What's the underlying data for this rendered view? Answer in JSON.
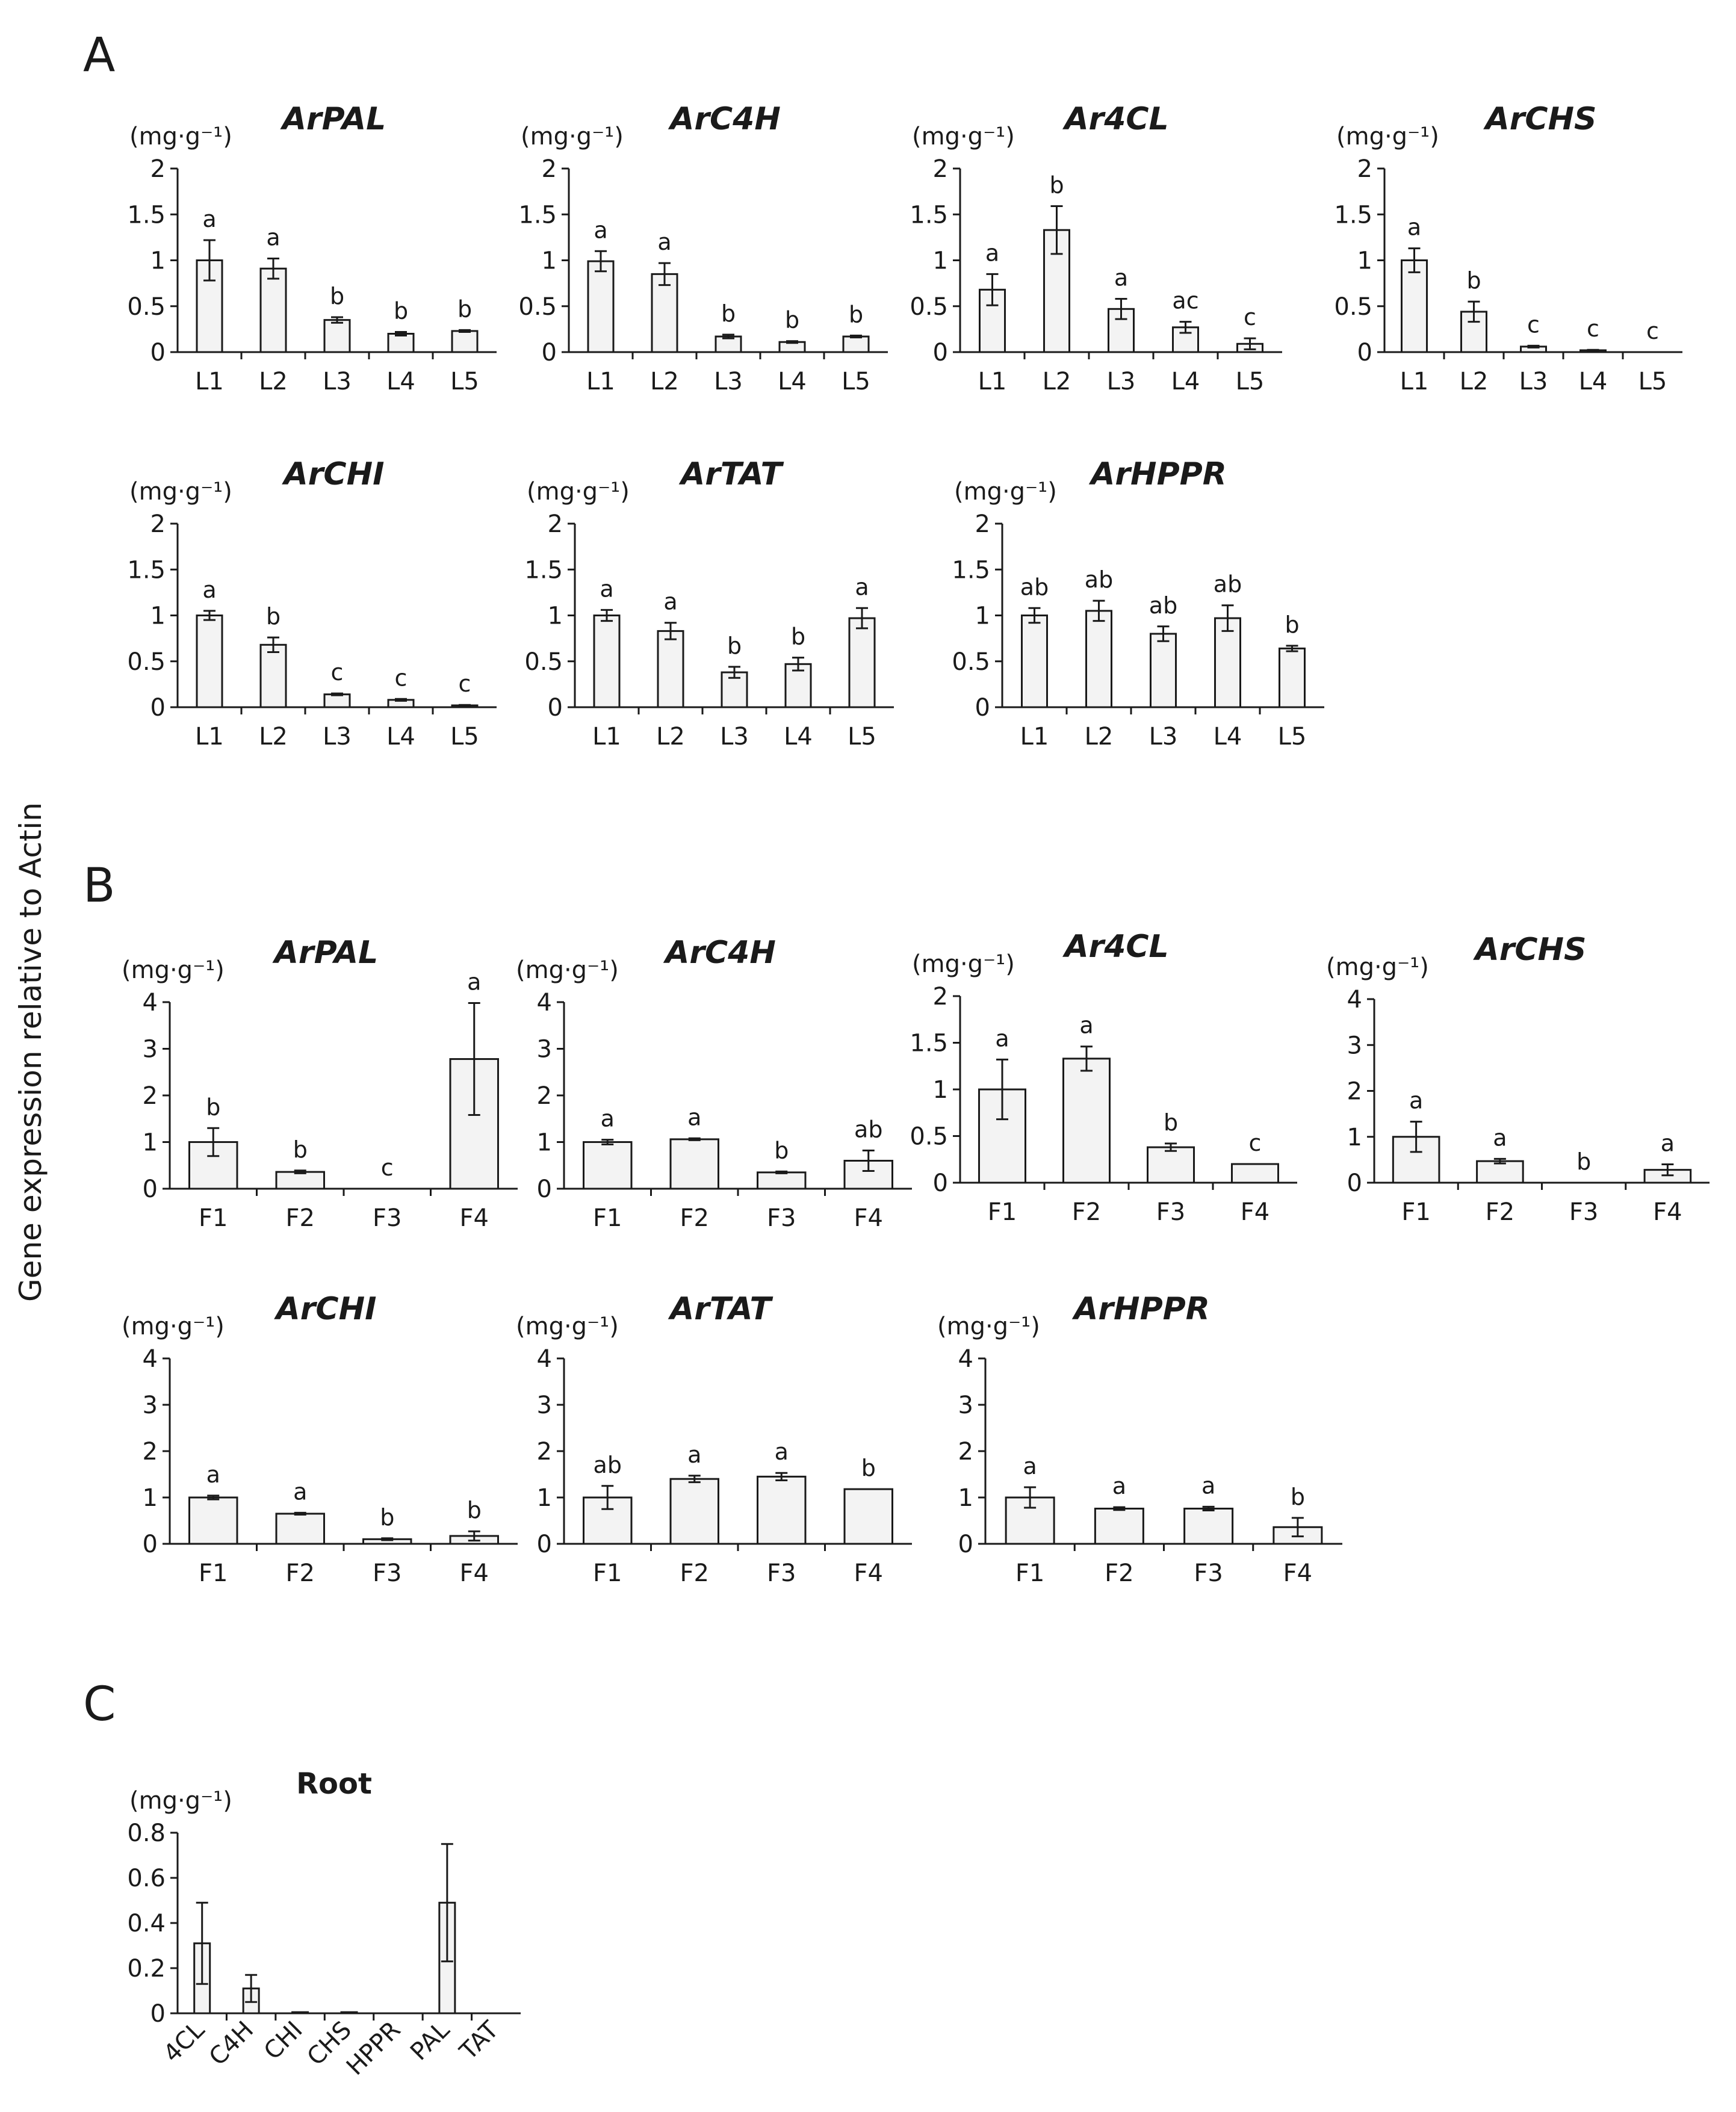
{
  "figure": {
    "y_axis_label": "Gene expression relative to Actin",
    "unit_label": "(mg·g⁻¹)",
    "panels": [
      {
        "letter": "A"
      },
      {
        "letter": "B"
      },
      {
        "letter": "C"
      }
    ]
  },
  "chart_data": [
    {
      "panel": "A",
      "type": "bar",
      "title": "ArPAL",
      "ylabel": "(mg·g⁻¹)",
      "ylim": [
        0,
        2
      ],
      "yticks": [
        "0",
        "0.5",
        "1",
        "1.5",
        "2"
      ],
      "categories": [
        "L1",
        "L2",
        "L3",
        "L4",
        "L5"
      ],
      "values": [
        1.0,
        0.91,
        0.35,
        0.2,
        0.23
      ],
      "errors": [
        0.22,
        0.11,
        0.03,
        0.02,
        0.01
      ],
      "letters": [
        "a",
        "a",
        "b",
        "b",
        "b"
      ]
    },
    {
      "panel": "A",
      "type": "bar",
      "title": "ArC4H",
      "ylabel": "(mg·g⁻¹)",
      "ylim": [
        0,
        2
      ],
      "yticks": [
        "0",
        "0.5",
        "1",
        "1.5",
        "2"
      ],
      "categories": [
        "L1",
        "L2",
        "L3",
        "L4",
        "L5"
      ],
      "values": [
        0.99,
        0.85,
        0.17,
        0.11,
        0.17
      ],
      "errors": [
        0.11,
        0.12,
        0.02,
        0.01,
        0.01
      ],
      "letters": [
        "a",
        "a",
        "b",
        "b",
        "b"
      ]
    },
    {
      "panel": "A",
      "type": "bar",
      "title": "Ar4CL",
      "ylabel": "(mg·g⁻¹)",
      "ylim": [
        0,
        2
      ],
      "yticks": [
        "0",
        "0.5",
        "1",
        "1.5",
        "2"
      ],
      "categories": [
        "L1",
        "L2",
        "L3",
        "L4",
        "L5"
      ],
      "values": [
        0.68,
        1.33,
        0.47,
        0.27,
        0.09
      ],
      "errors": [
        0.17,
        0.26,
        0.11,
        0.06,
        0.06
      ],
      "letters": [
        "a",
        "b",
        "a",
        "ac",
        "c"
      ]
    },
    {
      "panel": "A",
      "type": "bar",
      "title": "ArCHS",
      "ylabel": "(mg·g⁻¹)",
      "ylim": [
        0,
        2
      ],
      "yticks": [
        "0",
        "0.5",
        "1",
        "1.5",
        "2"
      ],
      "categories": [
        "L1",
        "L2",
        "L3",
        "L4",
        "L5"
      ],
      "values": [
        1.0,
        0.44,
        0.06,
        0.02,
        0.0
      ],
      "errors": [
        0.13,
        0.11,
        0.01,
        0.005,
        0.0
      ],
      "letters": [
        "a",
        "b",
        "c",
        "c",
        "c"
      ]
    },
    {
      "panel": "A",
      "type": "bar",
      "title": "ArCHI",
      "ylabel": "(mg·g⁻¹)",
      "ylim": [
        0,
        2
      ],
      "yticks": [
        "0",
        "0.5",
        "1",
        "1.5",
        "2"
      ],
      "categories": [
        "L1",
        "L2",
        "L3",
        "L4",
        "L5"
      ],
      "values": [
        1.0,
        0.68,
        0.14,
        0.08,
        0.02
      ],
      "errors": [
        0.05,
        0.08,
        0.01,
        0.01,
        0.005
      ],
      "letters": [
        "a",
        "b",
        "c",
        "c",
        "c"
      ]
    },
    {
      "panel": "A",
      "type": "bar",
      "title": "ArTAT",
      "ylabel": "(mg·g⁻¹)",
      "ylim": [
        0,
        2
      ],
      "yticks": [
        "0",
        "0.5",
        "1",
        "1.5",
        "2"
      ],
      "categories": [
        "L1",
        "L2",
        "L3",
        "L4",
        "L5"
      ],
      "values": [
        1.0,
        0.83,
        0.38,
        0.47,
        0.97
      ],
      "errors": [
        0.06,
        0.09,
        0.06,
        0.07,
        0.11
      ],
      "letters": [
        "a",
        "a",
        "b",
        "b",
        "a"
      ]
    },
    {
      "panel": "A",
      "type": "bar",
      "title": "ArHPPR",
      "ylabel": "(mg·g⁻¹)",
      "ylim": [
        0,
        2
      ],
      "yticks": [
        "0",
        "0.5",
        "1",
        "1.5",
        "2"
      ],
      "categories": [
        "L1",
        "L2",
        "L3",
        "L4",
        "L5"
      ],
      "values": [
        1.0,
        1.05,
        0.8,
        0.97,
        0.64
      ],
      "errors": [
        0.08,
        0.11,
        0.08,
        0.14,
        0.03
      ],
      "letters": [
        "ab",
        "ab",
        "ab",
        "ab",
        "b"
      ]
    },
    {
      "panel": "B",
      "type": "bar",
      "title": "ArPAL",
      "ylabel": "(mg·g⁻¹)",
      "ylim": [
        0,
        4
      ],
      "yticks": [
        "0",
        "1",
        "2",
        "3",
        "4"
      ],
      "categories": [
        "F1",
        "F2",
        "F3",
        "F4"
      ],
      "values": [
        1.0,
        0.36,
        0.0,
        2.78
      ],
      "errors": [
        0.3,
        0.03,
        0.0,
        1.2
      ],
      "letters": [
        "b",
        "b",
        "c",
        "a"
      ]
    },
    {
      "panel": "B",
      "type": "bar",
      "title": "ArC4H",
      "ylabel": "(mg·g⁻¹)",
      "ylim": [
        0,
        4
      ],
      "yticks": [
        "0",
        "1",
        "2",
        "3",
        "4"
      ],
      "categories": [
        "F1",
        "F2",
        "F3",
        "F4"
      ],
      "values": [
        1.0,
        1.06,
        0.35,
        0.6
      ],
      "errors": [
        0.05,
        0.02,
        0.02,
        0.22
      ],
      "letters": [
        "a",
        "a",
        "b",
        "ab"
      ]
    },
    {
      "panel": "B",
      "type": "bar",
      "title": "Ar4CL",
      "ylabel": "(mg·g⁻¹)",
      "ylim": [
        0,
        2
      ],
      "yticks": [
        "0",
        "0.5",
        "1",
        "1.5",
        "2"
      ],
      "categories": [
        "F1",
        "F2",
        "F3",
        "F4"
      ],
      "values": [
        1.0,
        1.33,
        0.38,
        0.2
      ],
      "errors": [
        0.32,
        0.13,
        0.04,
        0.0
      ],
      "letters": [
        "a",
        "a",
        "b",
        "c"
      ]
    },
    {
      "panel": "B",
      "type": "bar",
      "title": "ArCHS",
      "ylabel": "(mg·g⁻¹)",
      "ylim": [
        0,
        4
      ],
      "yticks": [
        "0",
        "1",
        "2",
        "3",
        "4"
      ],
      "categories": [
        "F1",
        "F2",
        "F3",
        "F4"
      ],
      "values": [
        1.0,
        0.47,
        0.0,
        0.28
      ],
      "errors": [
        0.33,
        0.05,
        0.0,
        0.12
      ],
      "letters": [
        "a",
        "a",
        "b",
        "a"
      ]
    },
    {
      "panel": "B",
      "type": "bar",
      "title": "ArCHI",
      "ylabel": "(mg·g⁻¹)",
      "ylim": [
        0,
        4
      ],
      "yticks": [
        "0",
        "1",
        "2",
        "3",
        "4"
      ],
      "categories": [
        "F1",
        "F2",
        "F3",
        "F4"
      ],
      "values": [
        1.0,
        0.65,
        0.1,
        0.17
      ],
      "errors": [
        0.04,
        0.02,
        0.02,
        0.1
      ],
      "letters": [
        "a",
        "a",
        "b",
        "b"
      ]
    },
    {
      "panel": "B",
      "type": "bar",
      "title": "ArTAT",
      "ylabel": "(mg·g⁻¹)",
      "ylim": [
        0,
        4
      ],
      "yticks": [
        "0",
        "1",
        "2",
        "3",
        "4"
      ],
      "categories": [
        "F1",
        "F2",
        "F3",
        "F4"
      ],
      "values": [
        1.0,
        1.4,
        1.45,
        1.18
      ],
      "errors": [
        0.25,
        0.07,
        0.08,
        0.0
      ],
      "letters": [
        "ab",
        "a",
        "a",
        "b"
      ]
    },
    {
      "panel": "B",
      "type": "bar",
      "title": "ArHPPR",
      "ylabel": "(mg·g⁻¹)",
      "ylim": [
        0,
        4
      ],
      "yticks": [
        "0",
        "1",
        "2",
        "3",
        "4"
      ],
      "categories": [
        "F1",
        "F2",
        "F3",
        "F4"
      ],
      "values": [
        1.0,
        0.76,
        0.76,
        0.36
      ],
      "errors": [
        0.22,
        0.03,
        0.04,
        0.2
      ],
      "letters": [
        "a",
        "a",
        "a",
        "b"
      ]
    },
    {
      "panel": "C",
      "type": "bar",
      "title": "Root",
      "ylabel": "(mg·g⁻¹)",
      "ylim": [
        0,
        0.8
      ],
      "yticks": [
        "0",
        "0.2",
        "0.4",
        "0.6",
        "0.8"
      ],
      "categories": [
        "4CL",
        "C4H",
        "CHI",
        "CHS",
        "HPPR",
        "PAL",
        "TAT"
      ],
      "values": [
        0.31,
        0.11,
        0.005,
        0.005,
        0.0,
        0.49,
        0.0
      ],
      "errors": [
        0.18,
        0.06,
        0.0,
        0.0,
        0.0,
        0.26,
        0.0
      ],
      "letters": [
        "",
        "",
        "",
        "",
        "",
        "",
        ""
      ]
    }
  ]
}
